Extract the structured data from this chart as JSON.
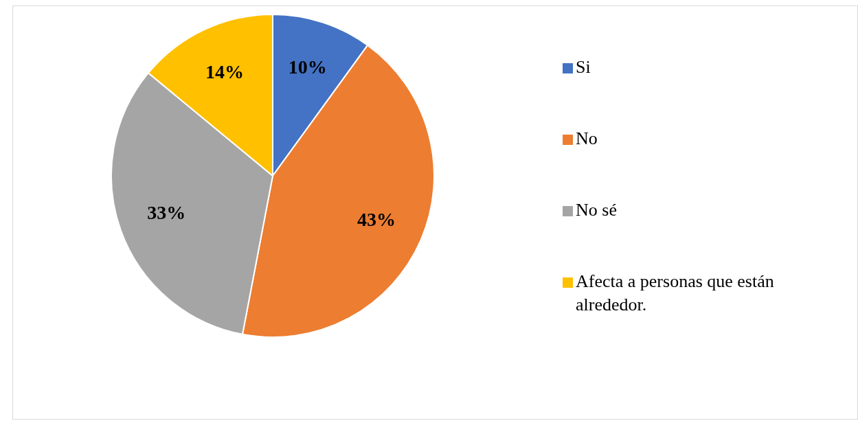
{
  "chart_data": {
    "type": "pie",
    "categories": [
      "Si",
      "No",
      "No sé",
      "Afecta a personas que están alrededor."
    ],
    "values": [
      10,
      43,
      33,
      14
    ],
    "colors": [
      "#4472c4",
      "#ed7d31",
      "#a5a5a5",
      "#ffc000"
    ],
    "value_labels": [
      "10%",
      "43%",
      "33%",
      "14%"
    ],
    "legend": "right"
  }
}
